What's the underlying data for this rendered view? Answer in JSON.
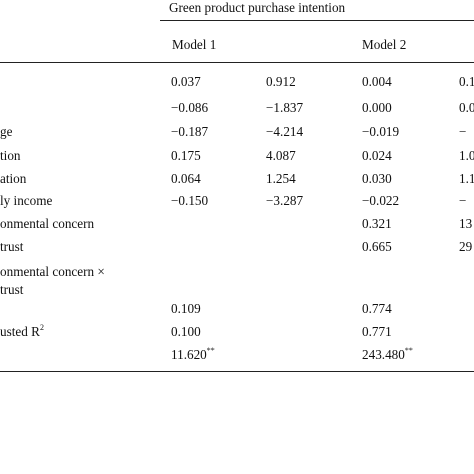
{
  "table": {
    "top_header": "Green product purchase intention",
    "model_headers": [
      "Model 1",
      "Model 2"
    ],
    "rows": [
      {
        "label": "",
        "m1_coef": "0.037",
        "m1_t": "0.912",
        "m2_coef": "0.004",
        "m2_t": "0.1"
      },
      {
        "label": "",
        "m1_coef": "−0.086",
        "m1_t": "−1.837",
        "m2_coef": "0.000",
        "m2_t": "0.0"
      },
      {
        "label": "ge",
        "m1_coef": "−0.187",
        "m1_t": "−4.214",
        "m2_coef": "−0.019",
        "m2_t": "−"
      },
      {
        "label": "tion",
        "m1_coef": "0.175",
        "m1_t": "4.087",
        "m2_coef": "0.024",
        "m2_t": "1.0"
      },
      {
        "label": "ation",
        "m1_coef": "0.064",
        "m1_t": "1.254",
        "m2_coef": "0.030",
        "m2_t": "1.1"
      },
      {
        "label": "ly income",
        "m1_coef": "−0.150",
        "m1_t": "−3.287",
        "m2_coef": "−0.022",
        "m2_t": "−"
      },
      {
        "label": "onmental concern",
        "m1_coef": "",
        "m1_t": "",
        "m2_coef": "0.321",
        "m2_t": "13"
      },
      {
        "label": "trust",
        "m1_coef": "",
        "m1_t": "",
        "m2_coef": "0.665",
        "m2_t": "29"
      },
      {
        "label": "onmental concern ×",
        "label2": "trust",
        "m1_coef": "",
        "m1_t": "",
        "m2_coef": "",
        "m2_t": ""
      },
      {
        "label": "",
        "m1_coef": "0.109",
        "m1_t": "",
        "m2_coef": "0.774",
        "m2_t": ""
      },
      {
        "label": "usted R",
        "label_sup": "2",
        "m1_coef": "0.100",
        "m1_t": "",
        "m2_coef": "0.771",
        "m2_t": ""
      },
      {
        "label": "",
        "m1_coef": "11.620",
        "m1_sup": "**",
        "m1_t": "",
        "m2_coef": "243.480",
        "m2_sup": "**",
        "m2_t": ""
      }
    ]
  }
}
